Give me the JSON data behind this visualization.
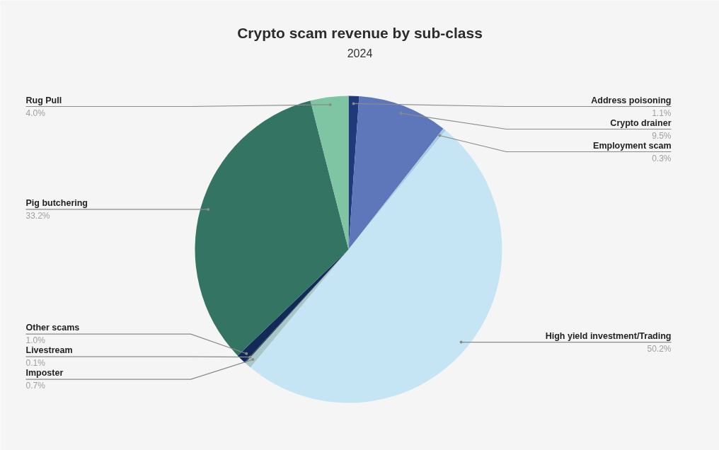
{
  "chart_data": {
    "type": "pie",
    "title": "Crypto scam revenue by sub-class",
    "subtitle": "2024",
    "categories": [
      "Address poisoning",
      "Crypto drainer",
      "Employment scam",
      "High yield investment/Trading",
      "Imposter",
      "Livestream",
      "Other scams",
      "Pig butchering",
      "Rug Pull"
    ],
    "values": [
      1.1,
      9.5,
      0.3,
      50.2,
      0.7,
      0.1,
      1.0,
      33.2,
      4.0
    ],
    "colors": [
      "#1e3a78",
      "#5e77bb",
      "#a6cbe3",
      "#c5e5f4",
      "#a7c6c8",
      "#2b4a52",
      "#132958",
      "#337463",
      "#7fc5a4"
    ],
    "value_labels": [
      "1.1%",
      "9.5%",
      "0.3%",
      "50.2%",
      "0.7%",
      "0.1%",
      "1.0%",
      "33.2%",
      "4.0%"
    ]
  }
}
